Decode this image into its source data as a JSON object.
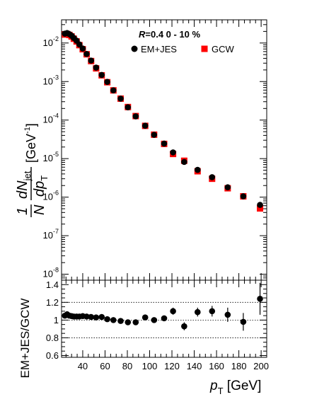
{
  "chart_data": [
    {
      "type": "scatter",
      "yscale": "log",
      "ylim": [
        7e-09,
        0.04
      ],
      "xlim": [
        21,
        205
      ],
      "ylabel_parts": {
        "frac_num": "1",
        "frac_den": "N",
        "d1": "d",
        "N": "N",
        "jet": "jet",
        "d2": "d",
        "p": "p",
        "T": "T",
        "unit_open": "[GeV",
        "unit_exp": "-1",
        "unit_close": "]"
      },
      "yticks": [
        {
          "v": 0.01,
          "base": "10",
          "exp": "-2"
        },
        {
          "v": 0.001,
          "base": "10",
          "exp": "-3"
        },
        {
          "v": 0.0001,
          "base": "10",
          "exp": "-4"
        },
        {
          "v": 1e-05,
          "base": "10",
          "exp": "-5"
        },
        {
          "v": 1e-06,
          "base": "10",
          "exp": "-6"
        },
        {
          "v": 1e-07,
          "base": "10",
          "exp": "-7"
        },
        {
          "v": 1e-08,
          "base": "10",
          "exp": "-8"
        }
      ],
      "annotation": {
        "R": "R",
        "rest": "=0.4  0 - 10 %"
      },
      "legend_position": "top-right",
      "series": [
        {
          "name": "EM+JES",
          "color": "#000000",
          "marker": "circle",
          "x": [
            24,
            26,
            28,
            30,
            32,
            34.5,
            37,
            40,
            43.5,
            47.5,
            52,
            57,
            62,
            67.5,
            74,
            80.5,
            87.5,
            96,
            104,
            113,
            121,
            131,
            143,
            156,
            170,
            184,
            199
          ],
          "y": [
            0.0175,
            0.0182,
            0.017,
            0.0155,
            0.0135,
            0.0115,
            0.0092,
            0.0072,
            0.0052,
            0.0035,
            0.0023,
            0.00148,
            0.00098,
            0.00059,
            0.00036,
            0.000215,
            0.000125,
            7.15e-05,
            4.15e-05,
            2.45e-05,
            1.45e-05,
            8.2e-06,
            5.1e-06,
            3.3e-06,
            1.8e-06,
            1.05e-06,
            6.3e-07
          ]
        },
        {
          "name": "GCW",
          "color": "#ff0000",
          "marker": "square",
          "x": [
            24,
            26,
            28,
            30,
            32,
            34.5,
            37,
            40,
            43.5,
            47.5,
            52,
            57,
            62,
            67.5,
            74,
            80.5,
            87.5,
            96,
            104,
            113,
            121,
            131,
            143,
            156,
            170,
            184,
            199
          ],
          "y": [
            0.0166,
            0.0171,
            0.0162,
            0.0148,
            0.0129,
            0.011,
            0.0088,
            0.0069,
            0.0051,
            0.0034,
            0.0022,
            0.00145,
            0.00096,
            0.00059,
            0.00036,
            0.000218,
            0.000127,
            7.08e-05,
            4.18e-05,
            2.41e-05,
            1.32e-05,
            8.8e-06,
            4.7e-06,
            3e-06,
            1.7e-06,
            1.05e-06,
            5.1e-07
          ]
        }
      ]
    },
    {
      "type": "scatter",
      "ylabel": "EM+JES/GCW",
      "xlabel": {
        "p": "p",
        "T": "T",
        "unit": " [GeV]"
      },
      "xlim": [
        21,
        205
      ],
      "ylim": [
        0.58,
        1.45
      ],
      "yticks": [
        0.6,
        0.8,
        1,
        1.2,
        1.4
      ],
      "ytick_labels": [
        "0.6",
        "0.8",
        "1",
        "1.2",
        "1.4"
      ],
      "xticks": [
        40,
        60,
        80,
        100,
        120,
        140,
        160,
        180,
        200
      ],
      "xtick_labels": [
        "40",
        "60",
        "80",
        "100",
        "120",
        "140",
        "160",
        "180",
        "200"
      ],
      "reference_lines": [
        0.8,
        1,
        1.2
      ],
      "series": [
        {
          "name": "EM+JES/GCW",
          "color": "#000000",
          "marker": "circle",
          "x": [
            24,
            26,
            28,
            30,
            32,
            34.5,
            37,
            40,
            43.5,
            47.5,
            52,
            57,
            62,
            67.5,
            74,
            80.5,
            87.5,
            96,
            104,
            113,
            121,
            131,
            143,
            156,
            170,
            184,
            199
          ],
          "y": [
            1.05,
            1.065,
            1.05,
            1.045,
            1.04,
            1.04,
            1.04,
            1.045,
            1.04,
            1.035,
            1.03,
            1.035,
            1.01,
            1.0,
            0.99,
            0.975,
            0.975,
            1.03,
            1.0,
            1.02,
            1.1,
            0.93,
            1.09,
            1.1,
            1.06,
            0.98,
            1.24
          ],
          "yerr": [
            0.008,
            0.008,
            0.008,
            0.008,
            0.008,
            0.008,
            0.008,
            0.008,
            0.008,
            0.008,
            0.01,
            0.01,
            0.012,
            0.012,
            0.015,
            0.015,
            0.018,
            0.02,
            0.02,
            0.025,
            0.04,
            0.045,
            0.05,
            0.06,
            0.08,
            0.1,
            0.18
          ]
        }
      ]
    }
  ]
}
